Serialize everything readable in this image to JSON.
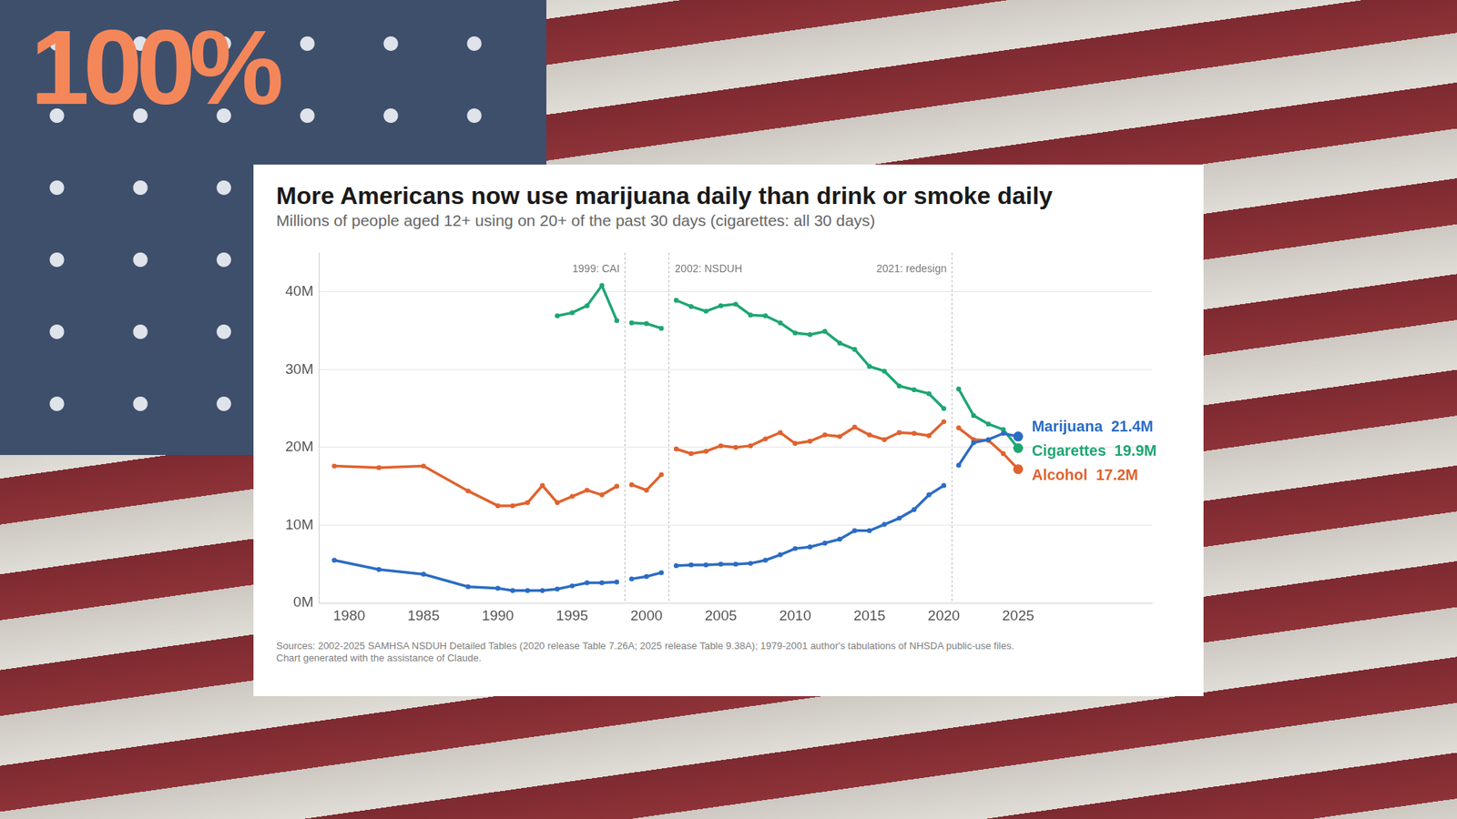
{
  "logo": "100%",
  "chart_data": {
    "type": "line",
    "title": "More Americans now use marijuana daily than drink or smoke daily",
    "subtitle": "Millions of people aged 12+ using on 20+ of the past 30 days (cigarettes: all 30 days)",
    "x": [
      1979,
      1982,
      1985,
      1988,
      1990,
      1991,
      1992,
      1993,
      1994,
      1995,
      1996,
      1997,
      1998,
      1999,
      2000,
      2001,
      2002,
      2003,
      2004,
      2005,
      2006,
      2007,
      2008,
      2009,
      2010,
      2011,
      2012,
      2013,
      2014,
      2015,
      2016,
      2017,
      2018,
      2019,
      2020,
      2021,
      2022,
      2023,
      2024,
      2025
    ],
    "series": [
      {
        "name": "Marijuana",
        "color": "#2b6cc4",
        "end_label": "21.4M",
        "values": [
          5.5,
          4.3,
          3.7,
          2.1,
          1.9,
          1.6,
          1.6,
          1.6,
          1.8,
          2.2,
          2.6,
          2.6,
          2.7,
          3.1,
          3.4,
          3.9,
          4.8,
          4.9,
          4.9,
          5.0,
          5.0,
          5.1,
          5.5,
          6.2,
          7.0,
          7.2,
          7.7,
          8.2,
          9.3,
          9.3,
          10.1,
          10.9,
          12.0,
          13.9,
          15.1,
          17.7,
          20.6,
          21.0,
          21.8,
          21.4
        ]
      },
      {
        "name": "Cigarettes",
        "color": "#1ea672",
        "end_label": "19.9M",
        "values": [
          null,
          null,
          null,
          null,
          null,
          null,
          null,
          null,
          36.9,
          37.3,
          38.2,
          40.8,
          36.3,
          36.0,
          35.9,
          35.3,
          38.9,
          38.1,
          37.5,
          38.2,
          38.4,
          37.0,
          36.9,
          36.0,
          34.7,
          34.5,
          34.9,
          33.4,
          32.6,
          30.4,
          29.8,
          27.9,
          27.4,
          26.9,
          25.0,
          27.5,
          24.1,
          23.0,
          22.3,
          19.9
        ]
      },
      {
        "name": "Alcohol",
        "color": "#e0622e",
        "end_label": "17.2M",
        "values": [
          17.6,
          17.4,
          17.6,
          14.4,
          12.5,
          12.5,
          12.9,
          15.1,
          12.9,
          13.7,
          14.5,
          13.9,
          15.0,
          15.2,
          14.5,
          16.5,
          19.8,
          19.2,
          19.5,
          20.2,
          20.0,
          20.2,
          21.1,
          21.9,
          20.5,
          20.8,
          21.6,
          21.4,
          22.6,
          21.6,
          21.0,
          21.9,
          21.8,
          21.5,
          23.3,
          22.5,
          21.0,
          20.9,
          19.2,
          17.2
        ]
      }
    ],
    "annotations": [
      {
        "x": 1998.5,
        "label": "1999: CAI"
      },
      {
        "x": 2001.5,
        "label": "2002: NSDUH"
      },
      {
        "x": 2020.5,
        "label": "2021: redesign"
      }
    ],
    "xlim": [
      1978,
      2034
    ],
    "xticks": [
      1980,
      1985,
      1990,
      1995,
      2000,
      2005,
      2010,
      2015,
      2020,
      2025
    ],
    "ylim": [
      0,
      45
    ],
    "yticks": [
      {
        "value": 0,
        "label": "0M"
      },
      {
        "value": 10,
        "label": "10M"
      },
      {
        "value": 20,
        "label": "20M"
      },
      {
        "value": 30,
        "label": "30M"
      },
      {
        "value": 40,
        "label": "40M"
      }
    ],
    "grid": "y",
    "marker": "circle",
    "line_style": "solid",
    "source": [
      "Sources: 2002-2025 SAMHSA NSDUH Detailed Tables (2020 release Table 7.26A; 2025 release Table 9.38A); 1979-2001 author's tabulations of NHSDA public-use files.",
      "Chart generated with the assistance of Claude."
    ]
  }
}
